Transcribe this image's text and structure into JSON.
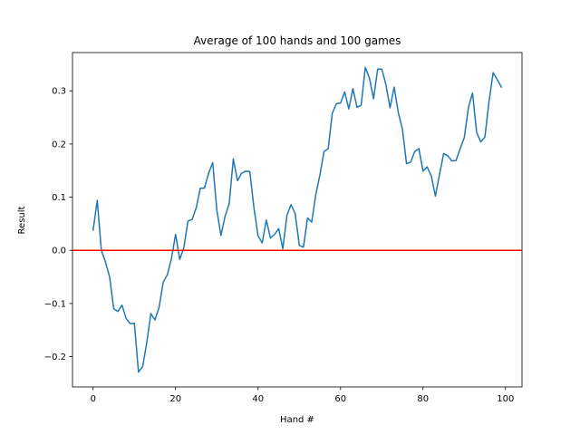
{
  "chart_data": {
    "type": "line",
    "title": "Average of 100 hands and 100 games",
    "xlabel": "Hand #",
    "ylabel": "Result",
    "xlim": [
      -5,
      104
    ],
    "ylim": [
      -0.257,
      0.372
    ],
    "xticks": [
      0,
      20,
      40,
      60,
      80,
      100
    ],
    "xtick_labels": [
      "0",
      "20",
      "40",
      "60",
      "80",
      "100"
    ],
    "yticks": [
      -0.2,
      -0.1,
      0.0,
      0.1,
      0.2,
      0.3
    ],
    "ytick_labels": [
      "−0.2",
      "−0.1",
      "0.0",
      "0.1",
      "0.2",
      "0.3"
    ],
    "grid": false,
    "reference_line": {
      "y": 0.0,
      "color": "#ff0000"
    },
    "series": [
      {
        "color": "#1f77b4",
        "x": [
          0,
          1,
          2,
          3,
          4,
          5,
          6,
          7,
          8,
          9,
          10,
          11,
          12,
          13,
          14,
          15,
          16,
          17,
          18,
          19,
          20,
          21,
          22,
          23,
          24,
          25,
          26,
          27,
          28,
          29,
          30,
          31,
          32,
          33,
          34,
          35,
          36,
          37,
          38,
          39,
          40,
          41,
          42,
          43,
          44,
          45,
          46,
          47,
          48,
          49,
          50,
          51,
          52,
          53,
          54,
          55,
          56,
          57,
          58,
          59,
          60,
          61,
          62,
          63,
          64,
          65,
          66,
          67,
          68,
          69,
          70,
          71,
          72,
          73,
          74,
          75,
          76,
          77,
          78,
          79,
          80,
          81,
          82,
          83,
          84,
          85,
          86,
          87,
          88,
          89,
          90,
          91,
          92,
          93,
          94,
          95,
          96,
          97,
          98,
          99
        ],
        "values": [
          0.038,
          0.094,
          0.0,
          -0.022,
          -0.05,
          -0.11,
          -0.115,
          -0.103,
          -0.128,
          -0.138,
          -0.137,
          -0.229,
          -0.219,
          -0.174,
          -0.119,
          -0.131,
          -0.107,
          -0.06,
          -0.046,
          -0.015,
          0.03,
          -0.017,
          0.005,
          0.055,
          0.058,
          0.08,
          0.117,
          0.117,
          0.145,
          0.165,
          0.075,
          0.028,
          0.064,
          0.088,
          0.172,
          0.131,
          0.145,
          0.149,
          0.148,
          0.08,
          0.027,
          0.014,
          0.057,
          0.023,
          0.03,
          0.041,
          0.003,
          0.066,
          0.086,
          0.069,
          0.009,
          0.006,
          0.061,
          0.053,
          0.105,
          0.142,
          0.186,
          0.191,
          0.258,
          0.276,
          0.277,
          0.298,
          0.266,
          0.304,
          0.269,
          0.273,
          0.344,
          0.324,
          0.285,
          0.341,
          0.341,
          0.312,
          0.268,
          0.307,
          0.259,
          0.228,
          0.163,
          0.166,
          0.186,
          0.191,
          0.149,
          0.157,
          0.14,
          0.102,
          0.143,
          0.182,
          0.178,
          0.168,
          0.169,
          0.191,
          0.212,
          0.268,
          0.296,
          0.222,
          0.204,
          0.213,
          0.28,
          0.334,
          0.321,
          0.307
        ]
      }
    ]
  }
}
